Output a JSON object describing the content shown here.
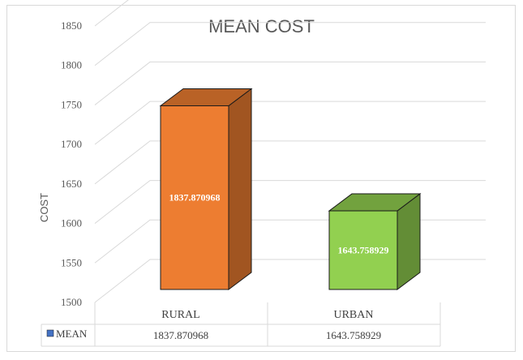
{
  "chart_data": {
    "type": "bar",
    "title": "MEAN COST",
    "ylabel": "COST",
    "xlabel": "",
    "categories": [
      "RURAL",
      "URBAN"
    ],
    "series": [
      {
        "name": "MEAN",
        "values": [
          1837.870968,
          1643.758929
        ],
        "value_labels": [
          "1837.870968",
          "1643.758929"
        ],
        "colors": [
          "#ed7d31",
          "#92d050"
        ]
      }
    ],
    "ylim": [
      1500,
      1850
    ],
    "yticks": [
      1500,
      1550,
      1600,
      1650,
      1700,
      1750,
      1800,
      1850
    ],
    "grid": true,
    "style": "3d-column",
    "data_table": true,
    "legend_position": "data-table"
  },
  "legend_color": "#4472c4"
}
